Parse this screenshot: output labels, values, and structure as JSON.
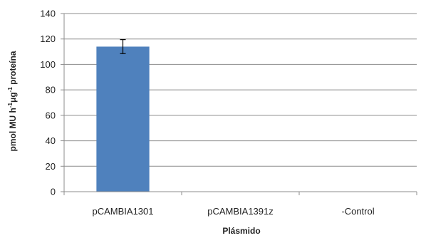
{
  "chart_data": {
    "type": "bar",
    "categories": [
      "pCAMBIA1301",
      "pCAMBIA1391z",
      "-Control"
    ],
    "values": [
      114,
      0,
      0
    ],
    "errors": [
      5.5,
      0,
      0
    ],
    "xlabel": "Plásmido",
    "ylabel": {
      "base": "pmol MU h",
      "sup1": "-1",
      "mid": "μg",
      "sup2": "-1",
      "tail": " proteína"
    },
    "ylim": [
      0,
      140
    ],
    "yticks": [
      0,
      20,
      40,
      60,
      80,
      100,
      120,
      140
    ],
    "grid": true,
    "legend": "none",
    "bar_color": "#4F81BD",
    "grid_color": "#8c8c8c",
    "axis_color": "#8c8c8c"
  }
}
